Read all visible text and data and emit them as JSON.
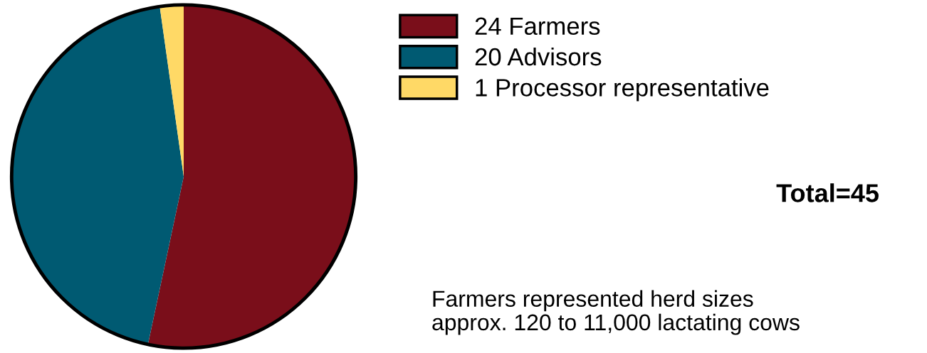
{
  "chart_data": {
    "type": "pie",
    "categories": [
      "24 Farmers",
      "20 Advisors",
      "1 Processor representative"
    ],
    "values": [
      24,
      20,
      1
    ],
    "colors": [
      "#7a0e1a",
      "#005a72",
      "#ffd966"
    ],
    "legend": "right",
    "annotations": [
      "Total=45",
      "Farmers represented herd sizes\napprox. 120 to 11,000 lactating cows"
    ]
  }
}
